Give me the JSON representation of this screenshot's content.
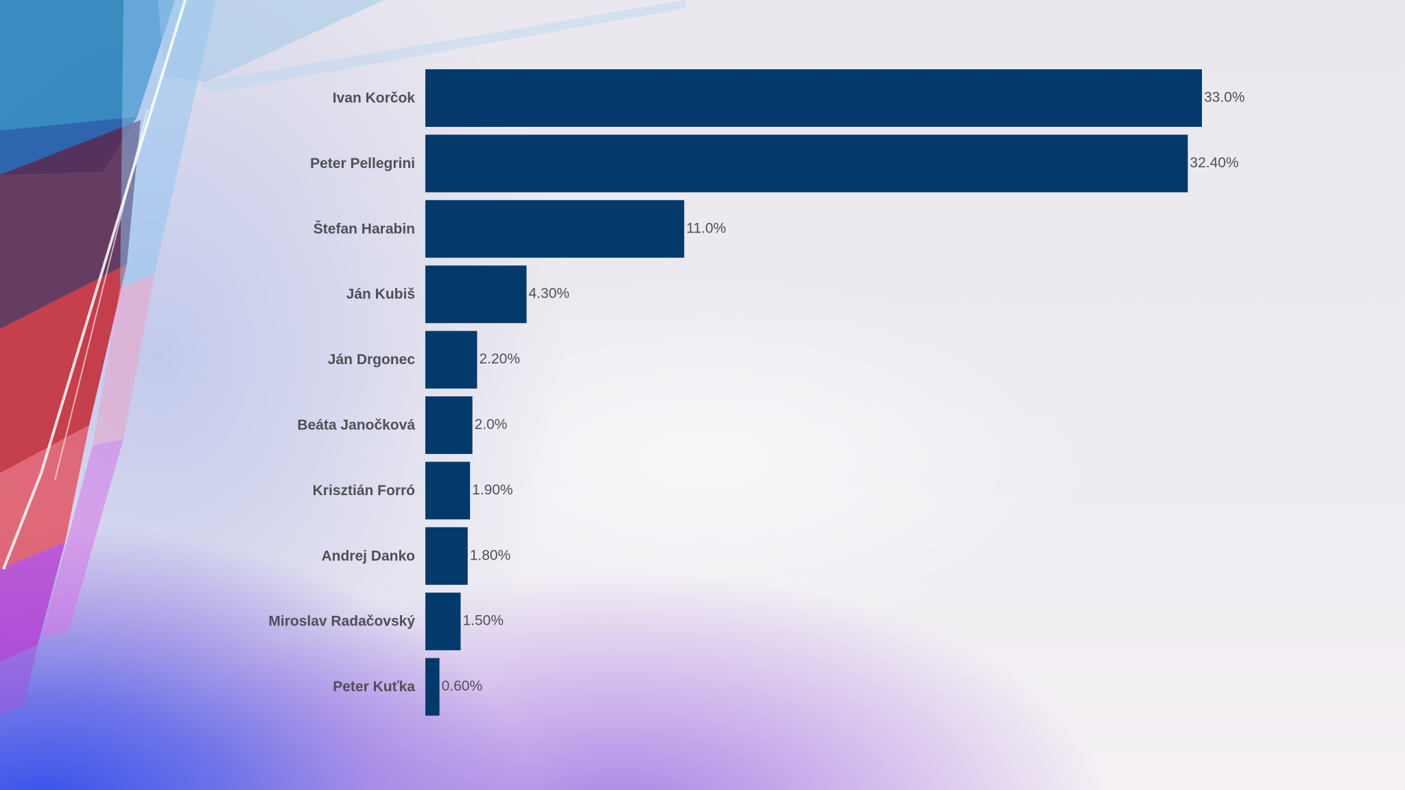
{
  "chart_data": {
    "type": "bar",
    "orientation": "horizontal",
    "title": "",
    "xlabel": "",
    "ylabel": "",
    "xlim": [
      0,
      33.0
    ],
    "grid": false,
    "legend": "none",
    "bar_color": "#033a6b",
    "label_color": "#4f4f56",
    "categories": [
      "Ivan Korčok",
      "Peter Pellegrini",
      "Štefan Harabin",
      "Ján Kubiš",
      "Ján Drgonec",
      "Beáta Janočková",
      "Krisztián Forró",
      "Andrej Danko",
      "Miroslav Radačovský",
      "Peter Kuťka"
    ],
    "values": [
      33.0,
      32.4,
      11.0,
      4.3,
      2.2,
      2.0,
      1.9,
      1.8,
      1.5,
      0.6
    ],
    "value_labels": [
      "33.0%",
      "32.40%",
      "11.0%",
      "4.30%",
      "2.20%",
      "2.0%",
      "1.90%",
      "1.80%",
      "1.50%",
      "0.60%"
    ]
  }
}
